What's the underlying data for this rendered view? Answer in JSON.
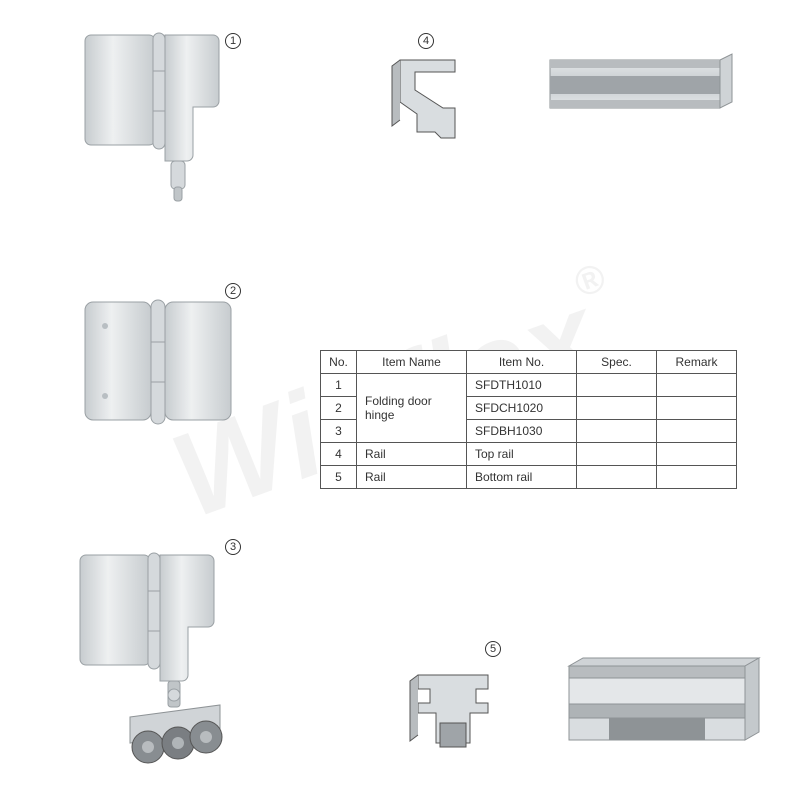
{
  "callouts": {
    "c1": "1",
    "c2": "2",
    "c3": "3",
    "c4": "4",
    "c5": "5"
  },
  "watermark": {
    "text": "Winflex",
    "reg": "®"
  },
  "table": {
    "headers": {
      "no": "No.",
      "name": "Item Name",
      "item": "Item No.",
      "spec": "Spec.",
      "remark": "Remark"
    },
    "rows": [
      {
        "no": "1",
        "name": "Folding door hinge",
        "item": "SFDTH1010",
        "spec": "",
        "remark": ""
      },
      {
        "no": "2",
        "name": "",
        "item": "SFDCH1020",
        "spec": "",
        "remark": ""
      },
      {
        "no": "3",
        "name": "",
        "item": "SFDBH1030",
        "spec": "",
        "remark": ""
      },
      {
        "no": "4",
        "name": "Rail",
        "item": "Top rail",
        "spec": "",
        "remark": ""
      },
      {
        "no": "5",
        "name": "Rail",
        "item": "Bottom rail",
        "spec": "",
        "remark": ""
      }
    ],
    "name_rowspan": 3
  },
  "colors": {
    "hinge_light": "#eef0f1",
    "hinge_mid": "#d5d9dc",
    "hinge_dark": "#b8bec2",
    "rail_light": "#d9dde0",
    "rail_mid": "#b8bcbf",
    "rail_dark": "#8e9396",
    "wheel": "#7a7e82",
    "stroke": "#555"
  }
}
